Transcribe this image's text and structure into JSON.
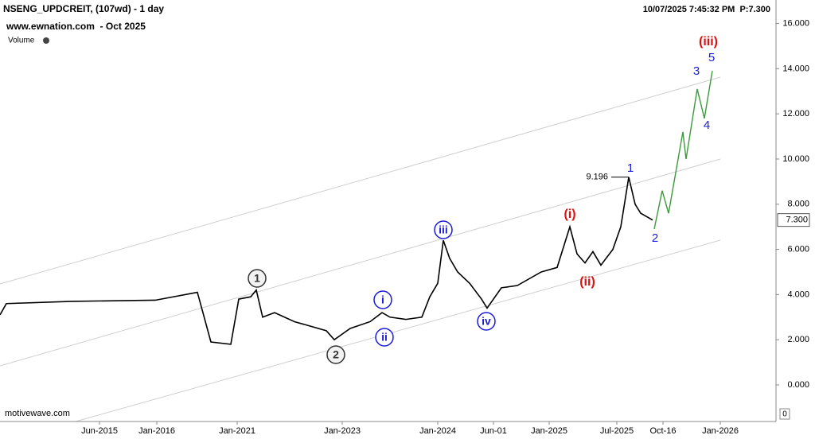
{
  "chart_data": {
    "type": "line",
    "title": "NSENG_UPDCREIT, (107wd) - 1 day",
    "subtitle": "www.ewnation.com  - Oct 2025",
    "volume_label": "Volume",
    "timestamp": "10/07/2025 7:45:32 PM  P:7.300",
    "watermark": "motivewave.com",
    "corner_label": "0",
    "xlim": [
      0,
      975
    ],
    "ylim": [
      -1.62,
      17.04
    ],
    "xticks": [
      {
        "value": 125,
        "label": "Jun-2015"
      },
      {
        "value": 197,
        "label": "Jan-2016"
      },
      {
        "value": 298,
        "label": "Jan-2021"
      },
      {
        "value": 430,
        "label": "Jan-2023"
      },
      {
        "value": 550,
        "label": "Jan-2024"
      },
      {
        "value": 620,
        "label": "Jun-01"
      },
      {
        "value": 690,
        "label": "Jan-2025"
      },
      {
        "value": 775,
        "label": "Jul-2025"
      },
      {
        "value": 833,
        "label": "Oct-16"
      },
      {
        "value": 905,
        "label": "Jan-2026"
      }
    ],
    "yticks": [
      {
        "value": 0,
        "label": "0.000"
      },
      {
        "value": 2,
        "label": "2.000"
      },
      {
        "value": 4,
        "label": "4.000"
      },
      {
        "value": 6,
        "label": "6.000"
      },
      {
        "value": 8,
        "label": "8.000"
      },
      {
        "value": 10,
        "label": "10.000"
      },
      {
        "value": 12,
        "label": "12.000"
      },
      {
        "value": 14,
        "label": "14.000"
      },
      {
        "value": 16,
        "label": "16.000"
      }
    ],
    "last_price": {
      "value": 7.3,
      "label": "7.300"
    },
    "peak_label": 9.196,
    "series": [
      {
        "color": "#000000",
        "x": [
          0,
          8,
          90,
          195,
          248,
          265,
          290,
          300,
          315,
          322,
          330,
          345,
          370,
          390,
          410,
          420,
          440,
          465,
          480,
          490,
          510,
          530,
          540,
          550,
          557,
          565,
          575,
          590,
          605,
          612,
          630,
          650,
          680,
          700,
          716,
          725,
          735,
          745,
          755,
          770,
          780,
          790,
          798,
          805,
          820
        ],
        "values": [
          3.1,
          3.6,
          3.7,
          3.75,
          4.1,
          1.9,
          1.8,
          3.8,
          3.9,
          4.2,
          3.0,
          3.2,
          2.8,
          2.6,
          2.4,
          2.0,
          2.5,
          2.8,
          3.2,
          3.0,
          2.9,
          3.0,
          3.9,
          4.5,
          6.4,
          5.6,
          5.0,
          4.5,
          3.8,
          3.4,
          4.3,
          4.4,
          5.0,
          5.2,
          7.0,
          5.8,
          5.4,
          5.9,
          5.3,
          6.0,
          7.0,
          9.196,
          8.0,
          7.6,
          7.3
        ]
      },
      {
        "color": "#3a9a3a",
        "x": [
          822,
          832,
          840,
          858,
          862,
          876,
          885,
          895
        ],
        "values": [
          6.9,
          8.6,
          7.6,
          11.2,
          10.0,
          13.1,
          11.8,
          13.9
        ]
      }
    ],
    "wave_labels": [
      "1",
      "2",
      "i",
      "ii",
      "iii",
      "iv",
      "(i)",
      "(ii)",
      "(iii)",
      "1",
      "2",
      "3",
      "4",
      "5"
    ]
  }
}
